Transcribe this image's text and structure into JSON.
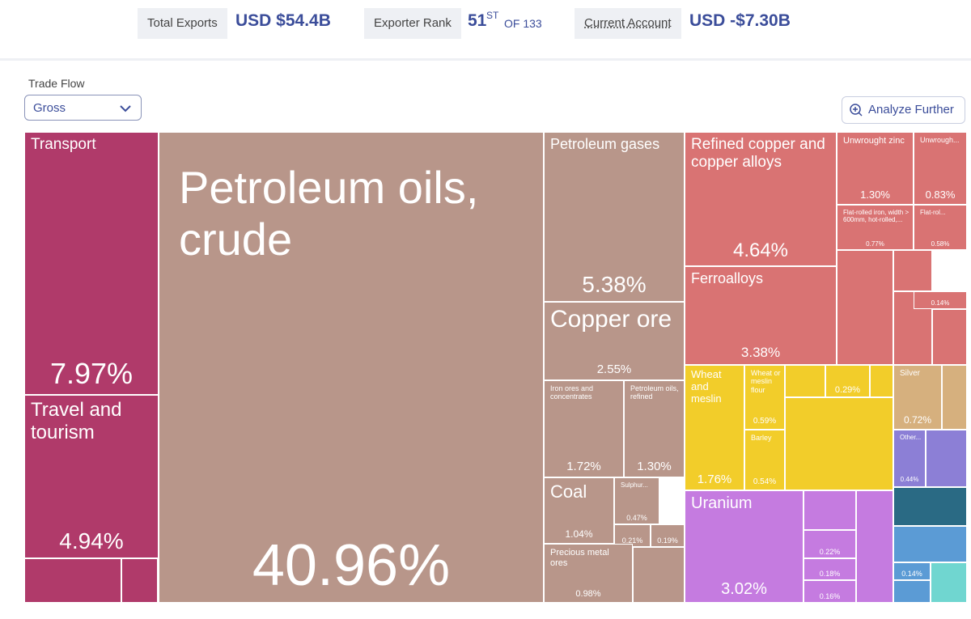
{
  "header": {
    "total_exports_label": "Total Exports",
    "total_exports_value": "USD $54.4B",
    "rank_label": "Exporter Rank",
    "rank_value": "51",
    "rank_suffix": "ST",
    "rank_of": "OF 133",
    "current_account_label": "Current Account",
    "current_account_value": "USD -$7.30B"
  },
  "controls": {
    "trade_flow_label": "Trade Flow",
    "trade_flow_value": "Gross",
    "analyze_button": "Analyze Further"
  },
  "chart_data": {
    "type": "treemap",
    "categories": [
      "Transport",
      "Travel and tourism",
      "Petroleum oils, crude",
      "Petroleum gases",
      "Copper ore",
      "Iron ores and concentrates",
      "Petroleum oils, refined",
      "Coal",
      "Sulphur...",
      null,
      null,
      "Precious metal ores",
      "Refined copper and copper alloys",
      "Ferroalloys",
      "Unwrought zinc",
      "Unwrough...",
      "Flat-rolled iron, width > 600mm, hot-rolled,...",
      "Flat-rol...",
      null,
      "Wheat and meslin",
      "Wheat or meslin flour",
      "Barley",
      null,
      "Silver",
      "Other...",
      "Uranium",
      null,
      null,
      null,
      null
    ],
    "values": [
      7.97,
      4.94,
      40.96,
      5.38,
      2.55,
      1.72,
      1.3,
      1.04,
      0.47,
      0.21,
      0.19,
      0.98,
      4.64,
      3.38,
      1.3,
      0.83,
      0.77,
      0.58,
      0.14,
      1.76,
      0.59,
      0.54,
      0.29,
      0.72,
      0.44,
      3.02,
      0.22,
      0.18,
      0.16,
      0.14
    ],
    "value_labels": [
      "7.97%",
      "4.94%",
      "40.96%",
      "5.38%",
      "2.55%",
      "1.72%",
      "1.30%",
      "1.04%",
      "0.47%",
      "0.21%",
      "0.19%",
      "0.98%",
      "4.64%",
      "3.38%",
      "1.30%",
      "0.83%",
      "0.77%",
      "0.58%",
      "0.14%",
      "1.76%",
      "0.59%",
      "0.54%",
      "0.29%",
      "0.72%",
      "0.44%",
      "3.02%",
      "0.22%",
      "0.18%",
      "0.16%",
      "0.14%"
    ],
    "colors": [
      "#b03a6a",
      "#b03a6a",
      "#b8968a",
      "#b8968a",
      "#b8968a",
      "#b8968a",
      "#b8968a",
      "#b8968a",
      "#b8968a",
      "#b8968a",
      "#b8968a",
      "#b8968a",
      "#d97373",
      "#d97373",
      "#d97373",
      "#d97373",
      "#d97373",
      "#d97373",
      "#d97373",
      "#f2cd2a",
      "#f2cd2a",
      "#f2cd2a",
      "#f2cd2a",
      "#d6b07e",
      "#8c7fd6",
      "#c57be0",
      "#c57be0",
      "#c57be0",
      "#c57be0",
      "#5b9bd5"
    ]
  }
}
